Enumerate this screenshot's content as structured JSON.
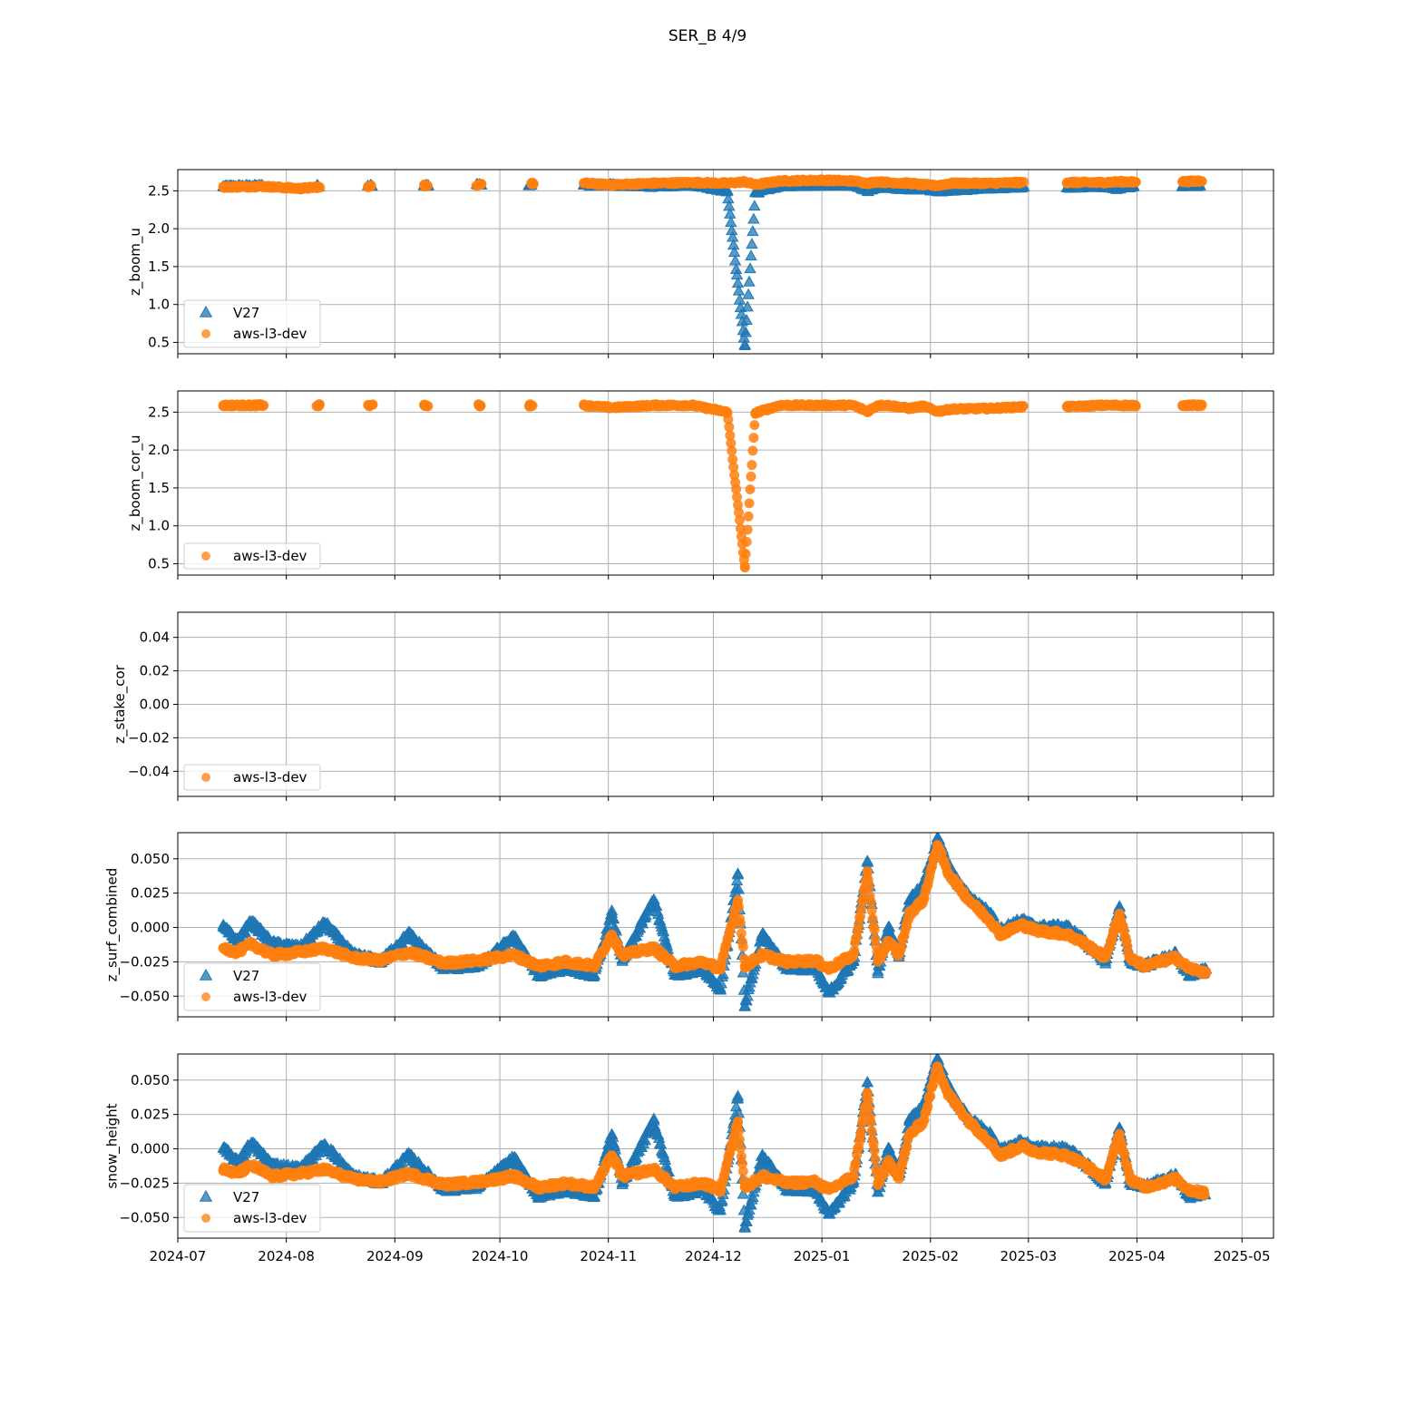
{
  "figure": {
    "title": "SER_B 4/9",
    "colors": {
      "v27": "#1f77b4",
      "dev": "#ff7f0e",
      "grid": "#b0b0b0"
    }
  },
  "chart_data": [
    {
      "type": "scatter",
      "ylabel": "z_boom_u",
      "xlim": [
        "2024-07-01",
        "2025-05-10"
      ],
      "ylim": [
        0.35,
        2.78
      ],
      "yticks": [
        0.5,
        1.0,
        1.5,
        2.0,
        2.5
      ],
      "ytick_labels": [
        "0.5",
        "1.0",
        "1.5",
        "2.0",
        "2.5"
      ],
      "grid": true,
      "legend": {
        "placement": "lower-left",
        "entries": [
          "V27",
          "aws-l3-dev"
        ]
      },
      "series": [
        {
          "name": "V27",
          "marker": "triangle",
          "x": [
            "2024-07-14",
            "2024-07-25",
            "2024-08-10",
            "2024-08-25",
            "2024-09-10",
            "2024-09-25",
            "2024-10-10",
            "2024-10-25",
            "2024-11-02",
            "2024-11-14",
            "2024-11-25",
            "2024-12-05",
            "2024-12-10",
            "2024-12-13",
            "2024-12-20",
            "2025-01-01",
            "2025-01-10",
            "2025-01-14",
            "2025-01-17",
            "2025-01-20",
            "2025-01-26",
            "2025-01-30",
            "2025-02-03",
            "2025-02-07",
            "2025-02-18",
            "2025-02-27",
            "2025-03-12",
            "2025-03-22",
            "2025-03-27",
            "2025-03-31",
            "2025-04-14",
            "2025-04-19"
          ],
          "y": [
            2.55,
            2.56,
            2.56,
            2.56,
            2.56,
            2.57,
            2.57,
            2.57,
            2.57,
            2.55,
            2.57,
            2.49,
            0.45,
            2.47,
            2.56,
            2.57,
            2.57,
            2.49,
            2.55,
            2.53,
            2.52,
            2.52,
            2.49,
            2.5,
            2.53,
            2.54,
            2.54,
            2.55,
            2.52,
            2.56,
            2.56,
            2.56
          ]
        },
        {
          "name": "aws-l3-dev",
          "marker": "circle",
          "x": [
            "2024-07-14",
            "2024-07-25",
            "2024-08-05",
            "2024-08-10",
            "2024-08-25",
            "2024-09-10",
            "2024-09-25",
            "2024-10-10",
            "2024-10-25",
            "2024-11-02",
            "2024-11-14",
            "2024-11-25",
            "2024-12-05",
            "2024-12-10",
            "2024-12-13",
            "2024-12-20",
            "2025-01-01",
            "2025-01-10",
            "2025-01-14",
            "2025-01-17",
            "2025-01-20",
            "2025-01-26",
            "2025-01-30",
            "2025-02-03",
            "2025-02-07",
            "2025-02-18",
            "2025-02-27",
            "2025-03-12",
            "2025-03-22",
            "2025-03-27",
            "2025-03-31",
            "2025-04-14",
            "2025-04-19"
          ],
          "y": [
            2.55,
            2.56,
            2.53,
            2.55,
            2.56,
            2.57,
            2.58,
            2.6,
            2.6,
            2.58,
            2.6,
            2.61,
            2.6,
            2.62,
            2.58,
            2.63,
            2.64,
            2.63,
            2.6,
            2.62,
            2.61,
            2.6,
            2.58,
            2.57,
            2.6,
            2.6,
            2.61,
            2.61,
            2.61,
            2.62,
            2.62,
            2.62,
            2.63
          ]
        }
      ]
    },
    {
      "type": "scatter",
      "ylabel": "z_boom_cor_u",
      "xlim": [
        "2024-07-01",
        "2025-05-10"
      ],
      "ylim": [
        0.35,
        2.78
      ],
      "yticks": [
        0.5,
        1.0,
        1.5,
        2.0,
        2.5
      ],
      "ytick_labels": [
        "0.5",
        "1.0",
        "1.5",
        "2.0",
        "2.5"
      ],
      "grid": true,
      "legend": {
        "placement": "lower-left",
        "entries": [
          "aws-l3-dev"
        ]
      },
      "series": [
        {
          "name": "aws-l3-dev",
          "marker": "circle",
          "x": [
            "2024-07-14",
            "2024-07-25",
            "2024-08-10",
            "2024-08-25",
            "2024-09-10",
            "2024-09-25",
            "2024-10-10",
            "2024-10-25",
            "2024-11-02",
            "2024-11-14",
            "2024-11-25",
            "2024-12-05",
            "2024-12-10",
            "2024-12-13",
            "2024-12-20",
            "2025-01-01",
            "2025-01-10",
            "2025-01-14",
            "2025-01-17",
            "2025-01-20",
            "2025-01-26",
            "2025-01-30",
            "2025-02-03",
            "2025-02-07",
            "2025-02-18",
            "2025-02-27",
            "2025-03-12",
            "2025-03-22",
            "2025-03-27",
            "2025-03-31",
            "2025-04-14",
            "2025-04-19"
          ],
          "y": [
            2.59,
            2.59,
            2.59,
            2.59,
            2.59,
            2.59,
            2.59,
            2.59,
            2.56,
            2.59,
            2.59,
            2.5,
            0.45,
            2.49,
            2.59,
            2.59,
            2.59,
            2.51,
            2.59,
            2.59,
            2.55,
            2.58,
            2.51,
            2.54,
            2.55,
            2.57,
            2.57,
            2.59,
            2.59,
            2.59,
            2.59,
            2.59
          ]
        }
      ]
    },
    {
      "type": "scatter",
      "ylabel": "z_stake_cor",
      "xlim": [
        "2024-07-01",
        "2025-05-10"
      ],
      "ylim": [
        -0.055,
        0.055
      ],
      "yticks": [
        -0.04,
        -0.02,
        0.0,
        0.02,
        0.04
      ],
      "ytick_labels": [
        "−0.04",
        "−0.02",
        "0.00",
        "0.02",
        "0.04"
      ],
      "grid": true,
      "legend": {
        "placement": "lower-left",
        "entries": [
          "aws-l3-dev"
        ]
      },
      "series": [
        {
          "name": "aws-l3-dev",
          "marker": "circle",
          "x": [],
          "y": []
        }
      ]
    },
    {
      "type": "scatter",
      "ylabel": "z_surf_combined",
      "xlim": [
        "2024-07-01",
        "2025-05-10"
      ],
      "ylim": [
        -0.065,
        0.069
      ],
      "yticks": [
        -0.05,
        -0.025,
        0.0,
        0.025,
        0.05
      ],
      "ytick_labels": [
        "−0.050",
        "−0.025",
        "0.000",
        "0.025",
        "0.050"
      ],
      "grid": true,
      "legend": {
        "placement": "lower-left",
        "entries": [
          "V27",
          "aws-l3-dev"
        ]
      },
      "series": [
        {
          "name": "V27",
          "marker": "triangle",
          "x": [
            "2024-07-14",
            "2024-07-18",
            "2024-07-22",
            "2024-07-28",
            "2024-08-05",
            "2024-08-12",
            "2024-08-20",
            "2024-08-28",
            "2024-09-05",
            "2024-09-15",
            "2024-09-25",
            "2024-10-05",
            "2024-10-12",
            "2024-10-20",
            "2024-10-28",
            "2024-11-02",
            "2024-11-05",
            "2024-11-14",
            "2024-11-20",
            "2024-11-28",
            "2024-12-03",
            "2024-12-08",
            "2024-12-10",
            "2024-12-15",
            "2024-12-22",
            "2024-12-30",
            "2025-01-03",
            "2025-01-10",
            "2025-01-14",
            "2025-01-17",
            "2025-01-20",
            "2025-01-23",
            "2025-01-26",
            "2025-01-30",
            "2025-02-03",
            "2025-02-06",
            "2025-02-09",
            "2025-02-12",
            "2025-02-18",
            "2025-02-21",
            "2025-02-27",
            "2025-03-03",
            "2025-03-12",
            "2025-03-16",
            "2025-03-23",
            "2025-03-27",
            "2025-03-30",
            "2025-04-03",
            "2025-04-12",
            "2025-04-16",
            "2025-04-20"
          ],
          "y": [
            0.0,
            -0.01,
            0.004,
            -0.012,
            -0.015,
            0.003,
            -0.02,
            -0.025,
            -0.005,
            -0.03,
            -0.028,
            -0.007,
            -0.035,
            -0.03,
            -0.035,
            0.01,
            -0.025,
            0.02,
            -0.035,
            -0.03,
            -0.045,
            0.038,
            -0.058,
            -0.005,
            -0.03,
            -0.03,
            -0.048,
            -0.025,
            0.048,
            -0.032,
            0.0,
            -0.02,
            0.02,
            0.03,
            0.065,
            0.045,
            0.032,
            0.022,
            0.01,
            -0.002,
            0.005,
            0.0,
            0.0,
            -0.008,
            -0.025,
            0.015,
            -0.025,
            -0.028,
            -0.02,
            -0.035,
            -0.032
          ]
        },
        {
          "name": "aws-l3-dev",
          "marker": "circle",
          "x": [
            "2024-07-14",
            "2024-07-18",
            "2024-07-22",
            "2024-07-28",
            "2024-08-05",
            "2024-08-12",
            "2024-08-20",
            "2024-08-28",
            "2024-09-05",
            "2024-09-15",
            "2024-09-25",
            "2024-10-05",
            "2024-10-12",
            "2024-10-20",
            "2024-10-28",
            "2024-11-02",
            "2024-11-05",
            "2024-11-14",
            "2024-11-20",
            "2024-11-28",
            "2024-12-03",
            "2024-12-08",
            "2024-12-10",
            "2024-12-15",
            "2024-12-22",
            "2024-12-30",
            "2025-01-03",
            "2025-01-10",
            "2025-01-14",
            "2025-01-17",
            "2025-01-20",
            "2025-01-23",
            "2025-01-26",
            "2025-01-30",
            "2025-02-03",
            "2025-02-06",
            "2025-02-09",
            "2025-02-12",
            "2025-02-18",
            "2025-02-21",
            "2025-02-27",
            "2025-03-03",
            "2025-03-12",
            "2025-03-16",
            "2025-03-23",
            "2025-03-27",
            "2025-03-30",
            "2025-04-03",
            "2025-04-12",
            "2025-04-16",
            "2025-04-20"
          ],
          "y": [
            -0.015,
            -0.018,
            -0.012,
            -0.02,
            -0.018,
            -0.015,
            -0.022,
            -0.024,
            -0.018,
            -0.026,
            -0.024,
            -0.02,
            -0.028,
            -0.025,
            -0.028,
            -0.005,
            -0.02,
            -0.015,
            -0.028,
            -0.025,
            -0.03,
            0.02,
            -0.028,
            -0.02,
            -0.025,
            -0.024,
            -0.03,
            -0.02,
            0.04,
            -0.025,
            -0.01,
            -0.02,
            0.01,
            0.02,
            0.06,
            0.04,
            0.03,
            0.02,
            0.005,
            -0.005,
            0.002,
            -0.002,
            -0.005,
            -0.01,
            -0.022,
            0.01,
            -0.022,
            -0.028,
            -0.022,
            -0.03,
            -0.032
          ]
        }
      ]
    },
    {
      "type": "scatter",
      "ylabel": "snow_height",
      "xlim": [
        "2024-07-01",
        "2025-05-10"
      ],
      "ylim": [
        -0.065,
        0.069
      ],
      "yticks": [
        -0.05,
        -0.025,
        0.0,
        0.025,
        0.05
      ],
      "ytick_labels": [
        "−0.050",
        "−0.025",
        "0.000",
        "0.025",
        "0.050"
      ],
      "xtick_labels": [
        "2024-07",
        "2024-08",
        "2024-09",
        "2024-10",
        "2024-11",
        "2024-12",
        "2025-01",
        "2025-02",
        "2025-03",
        "2025-04",
        "2025-05"
      ],
      "grid": true,
      "legend": {
        "placement": "lower-left",
        "entries": [
          "V27",
          "aws-l3-dev"
        ]
      },
      "series": [
        {
          "name": "V27",
          "marker": "triangle",
          "x": [
            "2024-07-14",
            "2024-07-18",
            "2024-07-22",
            "2024-07-28",
            "2024-08-05",
            "2024-08-12",
            "2024-08-20",
            "2024-08-28",
            "2024-09-05",
            "2024-09-15",
            "2024-09-25",
            "2024-10-05",
            "2024-10-12",
            "2024-10-20",
            "2024-10-28",
            "2024-11-02",
            "2024-11-05",
            "2024-11-14",
            "2024-11-20",
            "2024-11-28",
            "2024-12-03",
            "2024-12-08",
            "2024-12-10",
            "2024-12-15",
            "2024-12-22",
            "2024-12-30",
            "2025-01-03",
            "2025-01-10",
            "2025-01-14",
            "2025-01-17",
            "2025-01-20",
            "2025-01-23",
            "2025-01-26",
            "2025-01-30",
            "2025-02-03",
            "2025-02-06",
            "2025-02-09",
            "2025-02-12",
            "2025-02-18",
            "2025-02-21",
            "2025-02-27",
            "2025-03-03",
            "2025-03-12",
            "2025-03-16",
            "2025-03-23",
            "2025-03-27",
            "2025-03-30",
            "2025-04-03",
            "2025-04-12",
            "2025-04-16",
            "2025-04-20"
          ],
          "y": [
            0.0,
            -0.01,
            0.004,
            -0.012,
            -0.015,
            0.003,
            -0.02,
            -0.025,
            -0.005,
            -0.03,
            -0.028,
            -0.007,
            -0.035,
            -0.03,
            -0.035,
            0.01,
            -0.025,
            0.02,
            -0.035,
            -0.03,
            -0.045,
            0.038,
            -0.058,
            -0.005,
            -0.03,
            -0.03,
            -0.048,
            -0.025,
            0.048,
            -0.032,
            0.0,
            -0.02,
            0.02,
            0.03,
            0.065,
            0.045,
            0.032,
            0.022,
            0.01,
            -0.002,
            0.005,
            0.0,
            0.0,
            -0.008,
            -0.025,
            0.015,
            -0.025,
            -0.028,
            -0.02,
            -0.035,
            -0.032
          ]
        },
        {
          "name": "aws-l3-dev",
          "marker": "circle",
          "x": [
            "2024-07-14",
            "2024-07-18",
            "2024-07-22",
            "2024-07-28",
            "2024-08-05",
            "2024-08-12",
            "2024-08-20",
            "2024-08-28",
            "2024-09-05",
            "2024-09-15",
            "2024-09-25",
            "2024-10-05",
            "2024-10-12",
            "2024-10-20",
            "2024-10-28",
            "2024-11-02",
            "2024-11-05",
            "2024-11-14",
            "2024-11-20",
            "2024-11-28",
            "2024-12-03",
            "2024-12-08",
            "2024-12-10",
            "2024-12-15",
            "2024-12-22",
            "2024-12-30",
            "2025-01-03",
            "2025-01-10",
            "2025-01-14",
            "2025-01-17",
            "2025-01-20",
            "2025-01-23",
            "2025-01-26",
            "2025-01-30",
            "2025-02-03",
            "2025-02-06",
            "2025-02-09",
            "2025-02-12",
            "2025-02-18",
            "2025-02-21",
            "2025-02-27",
            "2025-03-03",
            "2025-03-12",
            "2025-03-16",
            "2025-03-23",
            "2025-03-27",
            "2025-03-30",
            "2025-04-03",
            "2025-04-12",
            "2025-04-16",
            "2025-04-20"
          ],
          "y": [
            -0.015,
            -0.018,
            -0.012,
            -0.02,
            -0.018,
            -0.015,
            -0.022,
            -0.024,
            -0.018,
            -0.026,
            -0.024,
            -0.02,
            -0.028,
            -0.025,
            -0.028,
            -0.005,
            -0.02,
            -0.015,
            -0.028,
            -0.025,
            -0.03,
            0.02,
            -0.028,
            -0.02,
            -0.025,
            -0.024,
            -0.03,
            -0.02,
            0.04,
            -0.025,
            -0.01,
            -0.02,
            0.01,
            0.02,
            0.06,
            0.04,
            0.03,
            0.02,
            0.005,
            -0.005,
            0.002,
            -0.002,
            -0.005,
            -0.01,
            -0.022,
            0.01,
            -0.022,
            -0.028,
            -0.022,
            -0.03,
            -0.032
          ]
        }
      ]
    }
  ]
}
